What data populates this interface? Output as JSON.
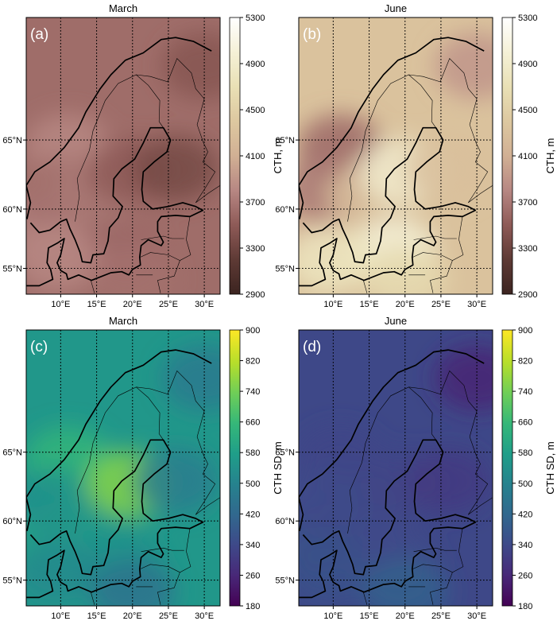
{
  "chart_data": [
    {
      "type": "heatmap",
      "panel_label": "(a)",
      "title": "March",
      "colorbar_label": "CTH, m",
      "colormap": "pink",
      "colorbar_ticks": [
        2900,
        3300,
        3700,
        4100,
        4500,
        4900,
        5300
      ],
      "range": [
        2900,
        5300
      ],
      "x_ticks": [
        "10°E",
        "15°E",
        "20°E",
        "25°E",
        "30°E"
      ],
      "y_ticks": [
        "55°N",
        "60°N",
        "65°N"
      ],
      "sampled_values": {
        "north_sea": 3750,
        "norway_coast": 3800,
        "norway_mountains": 3650,
        "sweden": 3700,
        "baltic": 3600,
        "gulf_of_bothnia": 3500,
        "finland": 3350,
        "northeast_russia": 3450,
        "denmark": 3800,
        "poland": 3650
      }
    },
    {
      "type": "heatmap",
      "panel_label": "(b)",
      "title": "June",
      "colorbar_label": "CTH, m",
      "colormap": "pink",
      "colorbar_ticks": [
        2900,
        3300,
        3700,
        4100,
        4500,
        4900,
        5300
      ],
      "range": [
        2900,
        5300
      ],
      "x_ticks": [
        "10°E",
        "15°E",
        "20°E",
        "25°E",
        "30°E"
      ],
      "y_ticks": [
        "55°N",
        "60°N",
        "65°N"
      ],
      "sampled_values": {
        "north_sea": 4100,
        "norway_coast": 3600,
        "norway_mountains": 3700,
        "sweden": 4300,
        "baltic": 5000,
        "gulf_of_bothnia": 4900,
        "finland": 4300,
        "northeast_russia": 3900,
        "denmark": 4800,
        "poland": 4600
      }
    },
    {
      "type": "heatmap",
      "panel_label": "(c)",
      "title": "March",
      "colorbar_label": "CTH SD, m",
      "colormap": "viridis",
      "colorbar_ticks": [
        180,
        260,
        340,
        420,
        500,
        580,
        660,
        740,
        820,
        900
      ],
      "range": [
        180,
        900
      ],
      "x_ticks": [
        "10°E",
        "15°E",
        "20°E",
        "25°E",
        "30°E"
      ],
      "y_ticks": [
        "55°N",
        "60°N",
        "65°N"
      ],
      "sampled_values": {
        "north_sea": 590,
        "norway_coast": 650,
        "norway_mountains": 540,
        "sweden": 560,
        "baltic": 540,
        "gulf_of_bothnia": 760,
        "finland": 480,
        "northeast_russia": 470,
        "denmark": 520,
        "poland": 450
      }
    },
    {
      "type": "heatmap",
      "panel_label": "(d)",
      "title": "June",
      "colorbar_label": "CTH SD, m",
      "colormap": "viridis",
      "colorbar_ticks": [
        180,
        260,
        340,
        420,
        500,
        580,
        660,
        740,
        820,
        900
      ],
      "range": [
        180,
        900
      ],
      "x_ticks": [
        "10°E",
        "15°E",
        "20°E",
        "25°E",
        "30°E"
      ],
      "y_ticks": [
        "55°N",
        "60°N",
        "65°N"
      ],
      "sampled_values": {
        "north_sea": 360,
        "norway_coast": 330,
        "norway_mountains": 340,
        "sweden": 340,
        "baltic": 340,
        "gulf_of_bothnia": 330,
        "finland": 300,
        "northeast_russia": 250,
        "denmark": 360,
        "poland": 400
      }
    }
  ]
}
